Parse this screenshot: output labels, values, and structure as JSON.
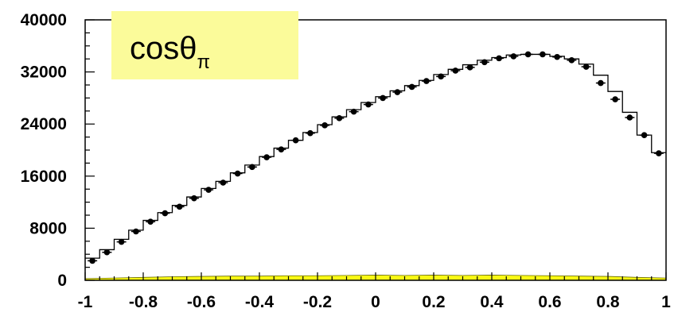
{
  "chart_data": {
    "type": "line",
    "title": "cosθ",
    "title_subscript": "π",
    "title_box_color": "#fbfb9a",
    "xlim": [
      -1,
      1
    ],
    "ylim": [
      0,
      40000
    ],
    "xticks": [
      "-1",
      "-0.8",
      "-0.6",
      "-0.4",
      "-0.2",
      "0",
      "0.2",
      "0.4",
      "0.6",
      "0.8",
      "1"
    ],
    "yticks": [
      "0",
      "8000",
      "16000",
      "24000",
      "32000",
      "40000"
    ],
    "grid": false,
    "colors": {
      "background_fill": "#fafa14",
      "points": "#000000",
      "histogram": "#000000"
    },
    "series": [
      {
        "kind": "histogram",
        "bin_edges": [
          -1,
          -0.95,
          -0.9,
          -0.85,
          -0.8,
          -0.75,
          -0.7,
          -0.65,
          -0.6,
          -0.55,
          -0.5,
          -0.45,
          -0.4,
          -0.35,
          -0.3,
          -0.25,
          -0.2,
          -0.15,
          -0.1,
          -0.05,
          0,
          0.05,
          0.1,
          0.15,
          0.2,
          0.25,
          0.3,
          0.35,
          0.4,
          0.45,
          0.5,
          0.55,
          0.6,
          0.65,
          0.7,
          0.75,
          0.8,
          0.85,
          0.9,
          0.95,
          1
        ],
        "values": [
          3400,
          4700,
          6300,
          7700,
          9200,
          10400,
          11500,
          12800,
          14100,
          15200,
          16500,
          17700,
          19000,
          20300,
          21500,
          22700,
          23900,
          25100,
          26200,
          27300,
          28200,
          29100,
          29900,
          30700,
          31600,
          32400,
          33100,
          33800,
          34200,
          34600,
          34700,
          34700,
          34400,
          34000,
          33200,
          31500,
          29000,
          25800,
          22300,
          19600
        ]
      },
      {
        "kind": "points",
        "x": [
          -0.975,
          -0.925,
          -0.875,
          -0.825,
          -0.775,
          -0.725,
          -0.675,
          -0.625,
          -0.575,
          -0.525,
          -0.475,
          -0.425,
          -0.375,
          -0.325,
          -0.275,
          -0.225,
          -0.175,
          -0.125,
          -0.075,
          -0.025,
          0.025,
          0.075,
          0.125,
          0.175,
          0.225,
          0.275,
          0.325,
          0.375,
          0.425,
          0.475,
          0.525,
          0.575,
          0.625,
          0.675,
          0.725,
          0.775,
          0.825,
          0.875,
          0.925,
          0.975
        ],
        "y": [
          3000,
          4300,
          5900,
          7500,
          9000,
          10300,
          11300,
          12600,
          13900,
          15000,
          16400,
          17400,
          18900,
          20100,
          21500,
          22600,
          23800,
          24900,
          25900,
          27000,
          28000,
          28900,
          29700,
          30600,
          31300,
          32200,
          32700,
          33500,
          34100,
          34400,
          34700,
          34700,
          34300,
          33800,
          32800,
          30300,
          27800,
          25000,
          22300,
          19500
        ]
      },
      {
        "kind": "area",
        "x": [
          -1,
          -0.9,
          -0.8,
          -0.7,
          -0.6,
          -0.5,
          -0.4,
          -0.3,
          -0.2,
          -0.1,
          0,
          0.1,
          0.2,
          0.3,
          0.4,
          0.5,
          0.6,
          0.7,
          0.8,
          0.9,
          1
        ],
        "y": [
          250,
          350,
          450,
          550,
          600,
          650,
          650,
          700,
          700,
          750,
          800,
          750,
          800,
          750,
          800,
          750,
          700,
          650,
          600,
          450,
          350
        ]
      }
    ]
  }
}
